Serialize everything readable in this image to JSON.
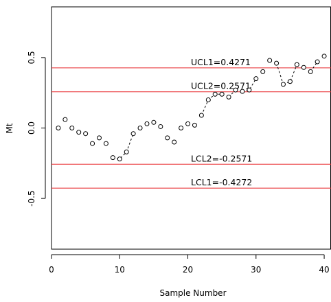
{
  "chart_data": {
    "type": "scatter",
    "xlabel": "Sample Number",
    "ylabel": "Mt",
    "xlim": [
      0,
      41
    ],
    "ylim": [
      -0.86,
      0.86
    ],
    "xticks": [
      0,
      10,
      20,
      30,
      40
    ],
    "yticks": [
      -0.5,
      0.0,
      0.5
    ],
    "xtick_labels": [
      "0",
      "10",
      "20",
      "30",
      "40"
    ],
    "ytick_labels": [
      "-0.5",
      "0.0",
      "0.5"
    ],
    "grid": false,
    "series": [
      {
        "x": [
          1,
          2,
          3,
          4,
          5,
          6,
          7,
          8,
          9,
          10,
          11,
          12,
          13,
          14,
          15,
          16,
          17,
          18,
          19,
          20,
          21,
          22,
          23,
          24,
          25,
          26,
          27,
          28,
          29,
          30,
          31,
          32,
          33,
          34,
          35,
          36,
          37,
          38,
          39,
          40
        ],
        "y": [
          0.0,
          0.06,
          0.0,
          -0.03,
          -0.04,
          -0.11,
          -0.07,
          -0.11,
          -0.21,
          -0.22,
          -0.17,
          -0.04,
          0.0,
          0.03,
          0.04,
          0.01,
          -0.07,
          -0.1,
          0.0,
          0.03,
          0.02,
          0.09,
          0.2,
          0.24,
          0.24,
          0.22,
          0.27,
          0.26,
          0.27,
          0.35,
          0.4,
          0.48,
          0.46,
          0.31,
          0.33,
          0.45,
          0.43,
          0.4,
          0.47,
          0.51
        ],
        "marker": "open-circle",
        "dashed_segments": [
          [
            9,
            12
          ],
          [
            22,
            25
          ],
          [
            26,
            27
          ],
          [
            28,
            30
          ],
          [
            33,
            34
          ],
          [
            34,
            36
          ],
          [
            38,
            39
          ]
        ]
      }
    ],
    "control_lines": [
      {
        "label": "UCL1=0.4271",
        "value": 0.4271,
        "color": "#e8272a"
      },
      {
        "label": "UCL2=0.2571",
        "value": 0.2571,
        "color": "#e8272a"
      },
      {
        "label": "LCL2=-0.2571",
        "value": -0.2571,
        "color": "#e8272a"
      },
      {
        "label": "LCL1=-0.4272",
        "value": -0.4272,
        "color": "#e8272a"
      }
    ]
  }
}
